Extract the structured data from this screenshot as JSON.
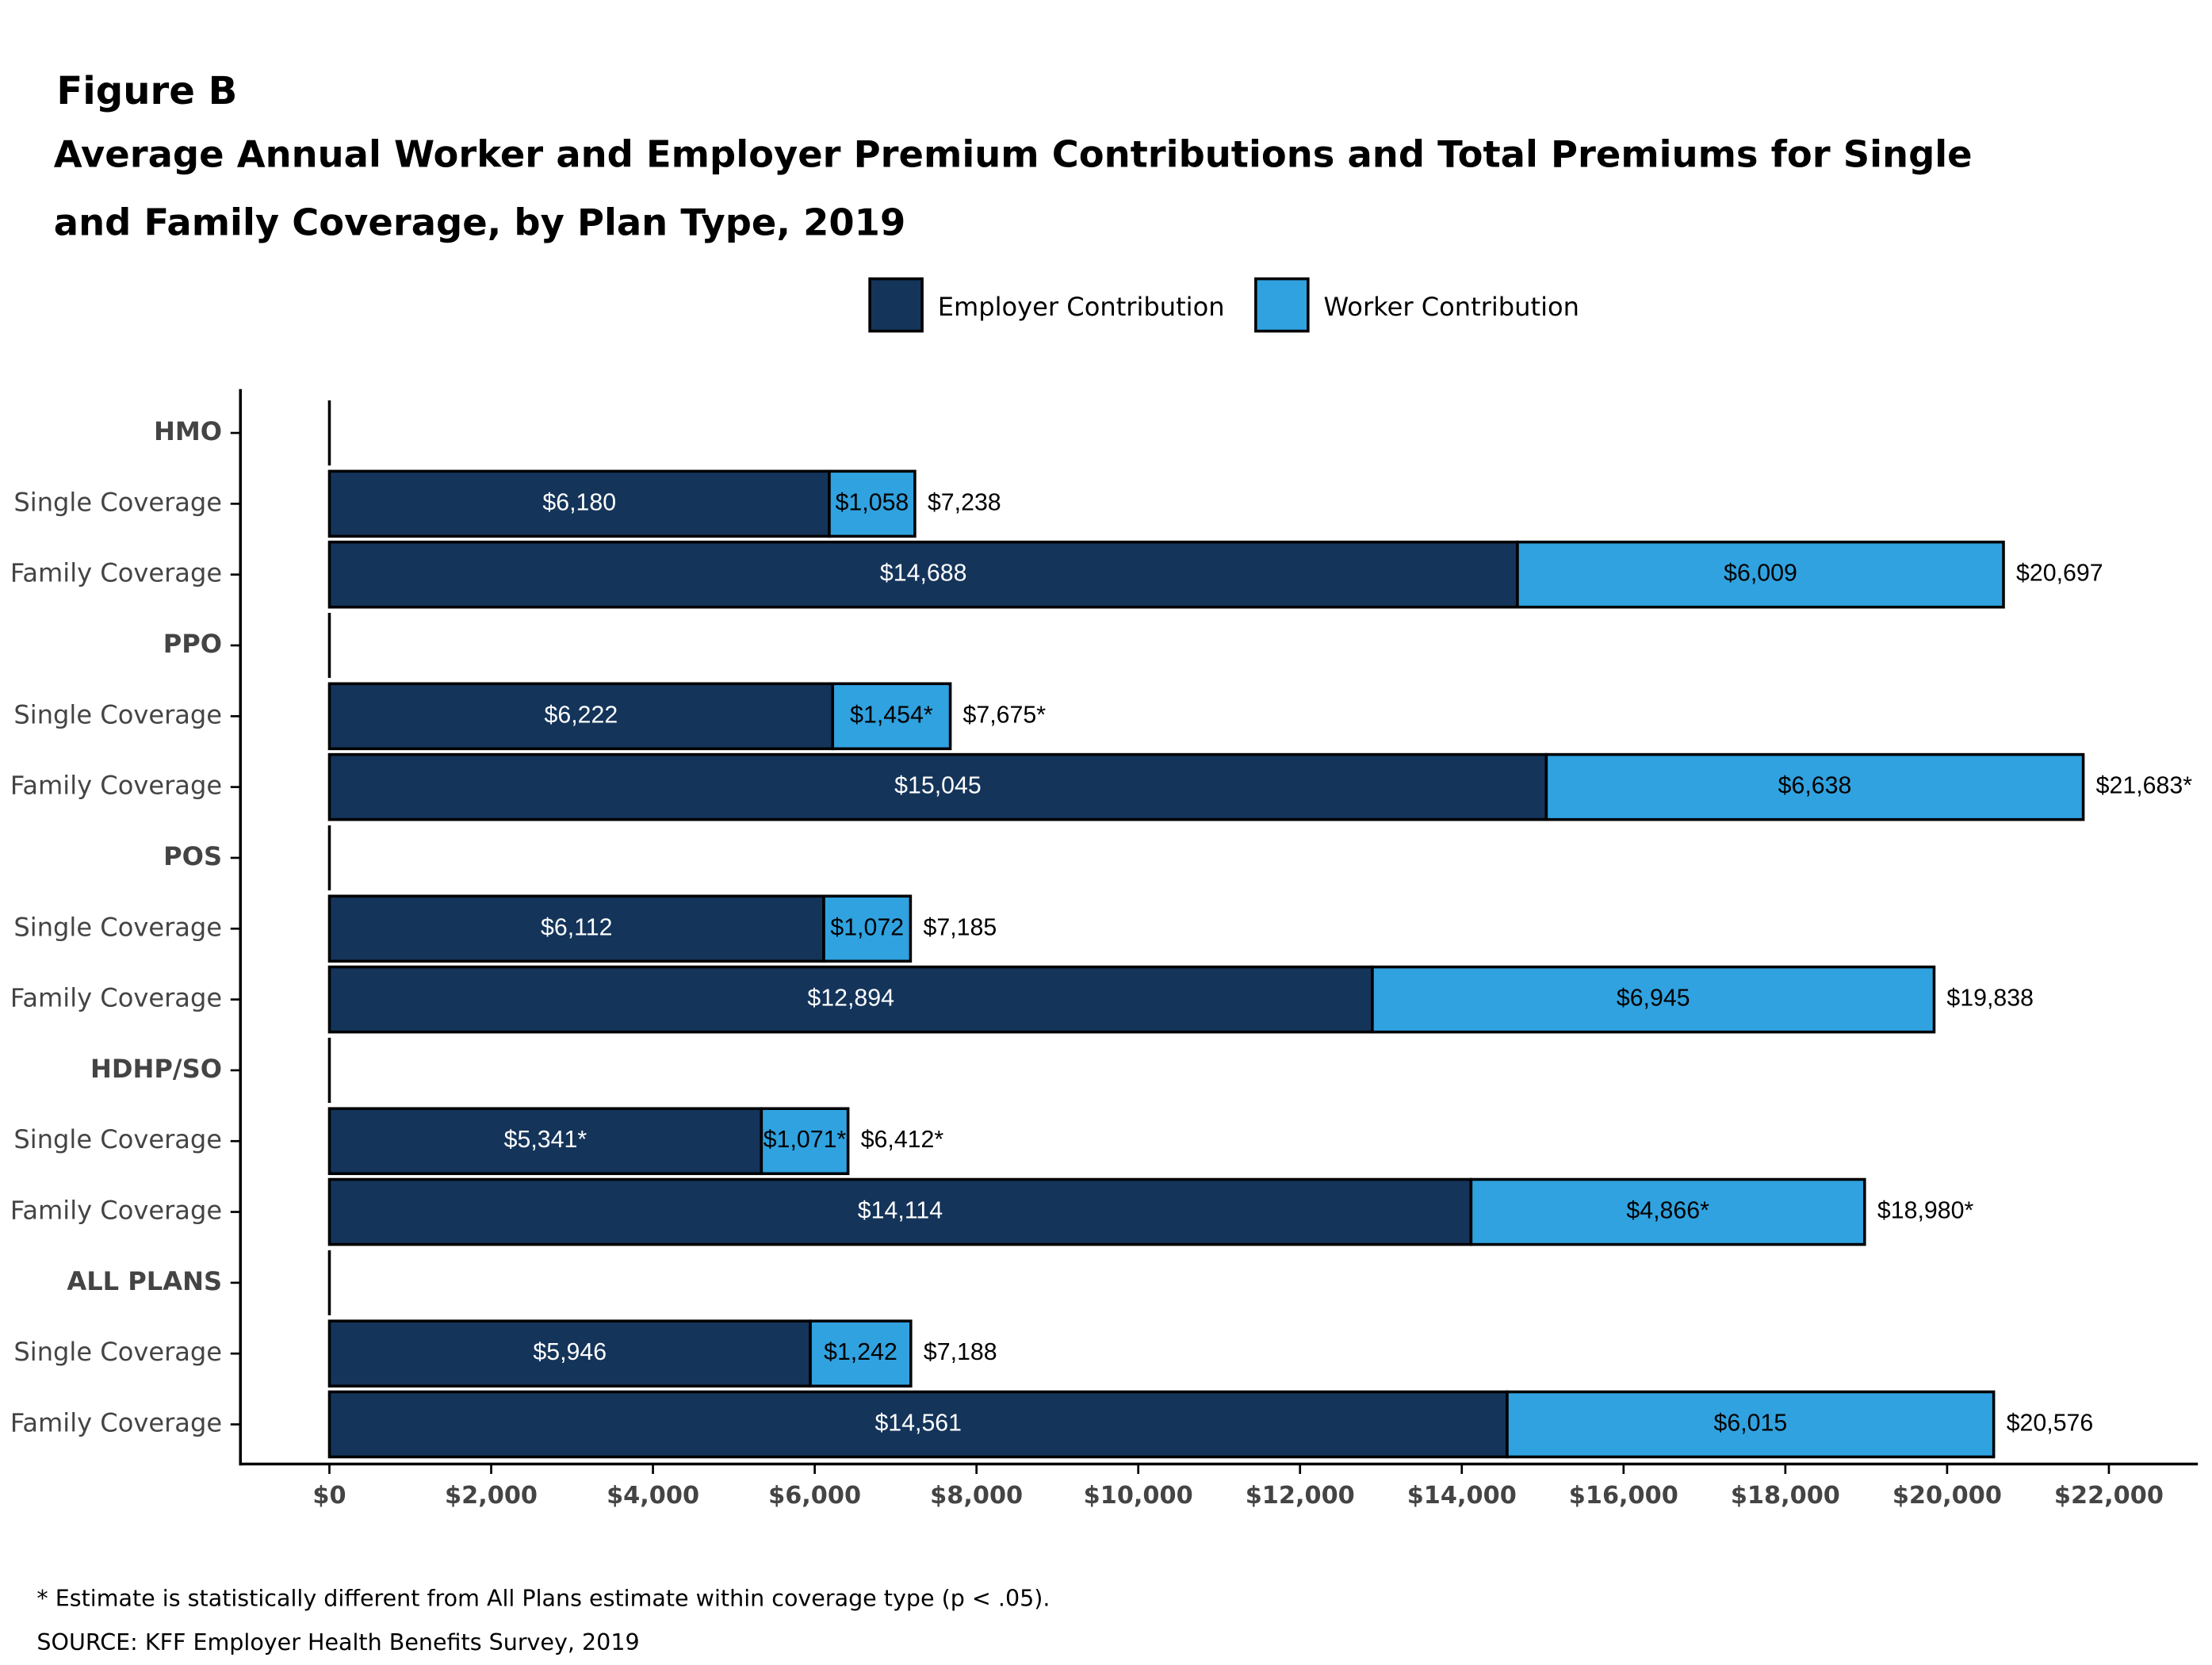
{
  "chart_data": {
    "type": "stacked-bar-horizontal",
    "figure_label": "Figure B",
    "title": "Average Annual Worker and Employer Premium Contributions and Total Premiums for Single and Family Coverage, by Plan Type, 2019",
    "categories": [
      "HMO",
      "Single Coverage",
      "Family Coverage",
      "PPO",
      "Single Coverage",
      "Family Coverage",
      "POS",
      "Single Coverage",
      "Family Coverage",
      "HDHP/SO",
      "Single Coverage",
      "Family Coverage",
      "ALL PLANS",
      "Single Coverage",
      "Family Coverage"
    ],
    "series": [
      {
        "name": "Employer Contribution",
        "color": "#14345a",
        "values": [
          null,
          6180,
          14688,
          null,
          6222,
          15045,
          null,
          6112,
          12894,
          null,
          5341,
          14114,
          null,
          5946,
          14561
        ],
        "value_labels": [
          null,
          "$6,180",
          "$14,688",
          null,
          "$6,222",
          "$15,045",
          null,
          "$6,112",
          "$12,894",
          null,
          "$5,341*",
          "$14,114",
          null,
          "$5,946",
          "$14,561"
        ]
      },
      {
        "name": "Worker Contribution",
        "color": "#30a2e0",
        "values": [
          null,
          1058,
          6009,
          null,
          1454,
          6638,
          null,
          1072,
          6945,
          null,
          1071,
          4866,
          null,
          1242,
          6015
        ],
        "value_labels": [
          null,
          "$1,058",
          "$6,009",
          null,
          "$1,454*",
          "$6,638",
          null,
          "$1,072",
          "$6,945",
          null,
          "$1,071*",
          "$4,866*",
          null,
          "$1,242",
          "$6,015"
        ]
      }
    ],
    "totals": {
      "values": [
        null,
        7238,
        20697,
        null,
        7675,
        21683,
        null,
        7185,
        19838,
        null,
        6412,
        18980,
        null,
        7188,
        20576
      ],
      "value_labels": [
        null,
        "$7,238",
        "$20,697",
        null,
        "$7,675*",
        "$21,683*",
        null,
        "$7,185",
        "$19,838",
        null,
        "$6,412*",
        "$18,980*",
        null,
        "$7,188",
        "$20,576"
      ]
    },
    "xlim": [
      -1100,
      23100
    ],
    "xticks": [
      {
        "value": 0,
        "label": "$0"
      },
      {
        "value": 2000,
        "label": "$2,000"
      },
      {
        "value": 4000,
        "label": "$4,000"
      },
      {
        "value": 6000,
        "label": "$6,000"
      },
      {
        "value": 8000,
        "label": "$8,000"
      },
      {
        "value": 10000,
        "label": "$10,000"
      },
      {
        "value": 12000,
        "label": "$12,000"
      },
      {
        "value": 14000,
        "label": "$14,000"
      },
      {
        "value": 16000,
        "label": "$16,000"
      },
      {
        "value": 18000,
        "label": "$18,000"
      },
      {
        "value": 20000,
        "label": "$20,000"
      },
      {
        "value": 22000,
        "label": "$22,000"
      }
    ],
    "legend_position": "top",
    "footnote": "* Estimate is statistically different from All Plans estimate within coverage type (p < .05).",
    "source": "SOURCE: KFF Employer Health Benefits Survey, 2019"
  }
}
